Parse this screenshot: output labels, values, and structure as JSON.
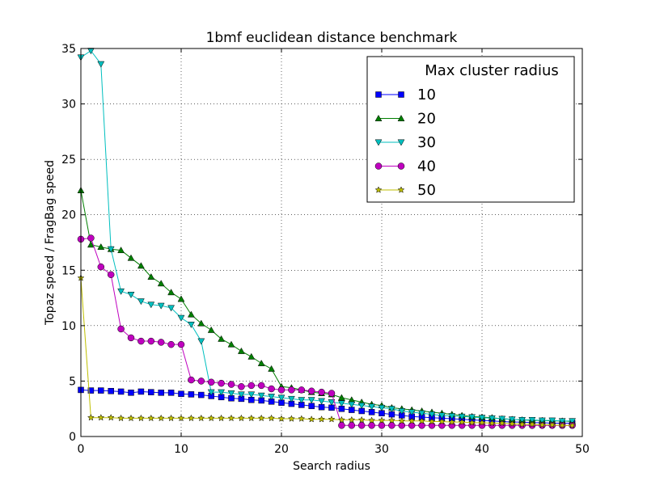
{
  "chart_data": {
    "type": "line",
    "title": "1bmf euclidean distance benchmark",
    "xlabel": "Search radius",
    "ylabel": "Topaz speed / FragBag speed",
    "xlim": [
      0,
      50
    ],
    "ylim": [
      0,
      35
    ],
    "xticks": [
      0,
      10,
      20,
      30,
      40,
      50
    ],
    "yticks": [
      0,
      5,
      10,
      15,
      20,
      25,
      30,
      35
    ],
    "grid": true,
    "legend": {
      "title": "Max cluster radius",
      "placement": "top-right"
    },
    "series": [
      {
        "name": "10",
        "color": "#0000ff",
        "marker": "square",
        "x": [
          0,
          1,
          2,
          3,
          4,
          5,
          6,
          7,
          8,
          9,
          10,
          11,
          12,
          13,
          14,
          15,
          16,
          17,
          18,
          19,
          20,
          21,
          22,
          23,
          24,
          25,
          26,
          27,
          28,
          29,
          30,
          31,
          32,
          33,
          34,
          35,
          36,
          37,
          38,
          39,
          40,
          41,
          42,
          43,
          44,
          45,
          46,
          47,
          48,
          49
        ],
        "y": [
          4.2,
          4.15,
          4.15,
          4.1,
          4.05,
          3.95,
          4.05,
          4.0,
          3.95,
          3.95,
          3.85,
          3.8,
          3.75,
          3.65,
          3.55,
          3.45,
          3.4,
          3.3,
          3.25,
          3.15,
          3.05,
          2.95,
          2.85,
          2.75,
          2.65,
          2.6,
          2.5,
          2.4,
          2.3,
          2.2,
          2.1,
          2.0,
          1.9,
          1.8,
          1.75,
          1.7,
          1.65,
          1.6,
          1.55,
          1.5,
          1.45,
          1.4,
          1.35,
          1.3,
          1.3,
          1.25,
          1.25,
          1.2,
          1.2,
          1.2
        ]
      },
      {
        "name": "20",
        "color": "#007f00",
        "marker": "triangle-up",
        "x": [
          0,
          1,
          2,
          3,
          4,
          5,
          6,
          7,
          8,
          9,
          10,
          11,
          12,
          13,
          14,
          15,
          16,
          17,
          18,
          19,
          20,
          21,
          22,
          23,
          24,
          25,
          26,
          27,
          28,
          29,
          30,
          31,
          32,
          33,
          34,
          35,
          36,
          37,
          38,
          39,
          40,
          41,
          42,
          43,
          44,
          45,
          46,
          47,
          48,
          49
        ],
        "y": [
          22.2,
          17.3,
          17.1,
          16.9,
          16.8,
          16.1,
          15.4,
          14.4,
          13.8,
          13.0,
          12.4,
          11.0,
          10.2,
          9.6,
          8.8,
          8.3,
          7.7,
          7.2,
          6.6,
          6.1,
          4.5,
          4.4,
          4.2,
          4.0,
          3.9,
          3.8,
          3.5,
          3.3,
          3.1,
          2.9,
          2.8,
          2.6,
          2.5,
          2.4,
          2.3,
          2.2,
          2.1,
          2.0,
          1.9,
          1.8,
          1.75,
          1.7,
          1.6,
          1.55,
          1.5,
          1.45,
          1.45,
          1.4,
          1.4,
          1.35
        ]
      },
      {
        "name": "30",
        "color": "#00bfbf",
        "marker": "triangle-down",
        "x": [
          0,
          1,
          2,
          3,
          4,
          5,
          6,
          7,
          8,
          9,
          10,
          11,
          12,
          13,
          14,
          15,
          16,
          17,
          18,
          19,
          20,
          21,
          22,
          23,
          24,
          25,
          26,
          27,
          28,
          29,
          30,
          31,
          32,
          33,
          34,
          35,
          36,
          37,
          38,
          39,
          40,
          41,
          42,
          43,
          44,
          45,
          46,
          47,
          48,
          49
        ],
        "y": [
          34.2,
          34.8,
          33.6,
          16.9,
          13.1,
          12.8,
          12.2,
          11.9,
          11.8,
          11.6,
          10.7,
          10.1,
          8.6,
          4.0,
          4.0,
          3.9,
          3.8,
          3.8,
          3.7,
          3.6,
          3.5,
          3.4,
          3.3,
          3.3,
          3.2,
          3.1,
          3.0,
          2.9,
          2.8,
          2.7,
          2.6,
          2.5,
          2.3,
          2.2,
          2.1,
          2.0,
          1.9,
          1.85,
          1.8,
          1.75,
          1.7,
          1.65,
          1.6,
          1.55,
          1.5,
          1.5,
          1.45,
          1.45,
          1.4,
          1.4
        ]
      },
      {
        "name": "40",
        "color": "#bf00bf",
        "marker": "circle",
        "x": [
          0,
          1,
          2,
          3,
          4,
          5,
          6,
          7,
          8,
          9,
          10,
          11,
          12,
          13,
          14,
          15,
          16,
          17,
          18,
          19,
          20,
          21,
          22,
          23,
          24,
          25,
          26,
          27,
          28,
          29,
          30,
          31,
          32,
          33,
          34,
          35,
          36,
          37,
          38,
          39,
          40,
          41,
          42,
          43,
          44,
          45,
          46,
          47,
          48,
          49
        ],
        "y": [
          17.8,
          17.9,
          15.3,
          14.6,
          9.7,
          8.9,
          8.6,
          8.6,
          8.5,
          8.3,
          8.3,
          5.1,
          5.0,
          4.9,
          4.8,
          4.7,
          4.5,
          4.6,
          4.6,
          4.3,
          4.2,
          4.2,
          4.2,
          4.1,
          4.0,
          3.9,
          1.0,
          1.0,
          1.0,
          1.0,
          1.0,
          1.0,
          1.0,
          1.0,
          1.0,
          1.0,
          1.0,
          1.0,
          1.0,
          1.0,
          1.0,
          1.0,
          1.0,
          1.0,
          1.0,
          1.0,
          1.0,
          1.0,
          1.0,
          1.0
        ]
      },
      {
        "name": "50",
        "color": "#bfbf00",
        "marker": "star",
        "x": [
          0,
          1,
          2,
          3,
          4,
          5,
          6,
          7,
          8,
          9,
          10,
          11,
          12,
          13,
          14,
          15,
          16,
          17,
          18,
          19,
          20,
          21,
          22,
          23,
          24,
          25,
          26,
          27,
          28,
          29,
          30,
          31,
          32,
          33,
          34,
          35,
          36,
          37,
          38,
          39,
          40,
          41,
          42,
          43,
          44,
          45,
          46,
          47,
          48,
          49
        ],
        "y": [
          14.3,
          1.7,
          1.7,
          1.7,
          1.65,
          1.65,
          1.65,
          1.65,
          1.65,
          1.65,
          1.65,
          1.65,
          1.65,
          1.65,
          1.65,
          1.65,
          1.65,
          1.65,
          1.65,
          1.65,
          1.6,
          1.6,
          1.6,
          1.55,
          1.55,
          1.55,
          1.5,
          1.5,
          1.5,
          1.45,
          1.45,
          1.45,
          1.4,
          1.4,
          1.4,
          1.35,
          1.35,
          1.3,
          1.3,
          1.25,
          1.25,
          1.2,
          1.2,
          1.15,
          1.1,
          1.1,
          1.05,
          1.05,
          1.0,
          1.0
        ]
      }
    ]
  }
}
